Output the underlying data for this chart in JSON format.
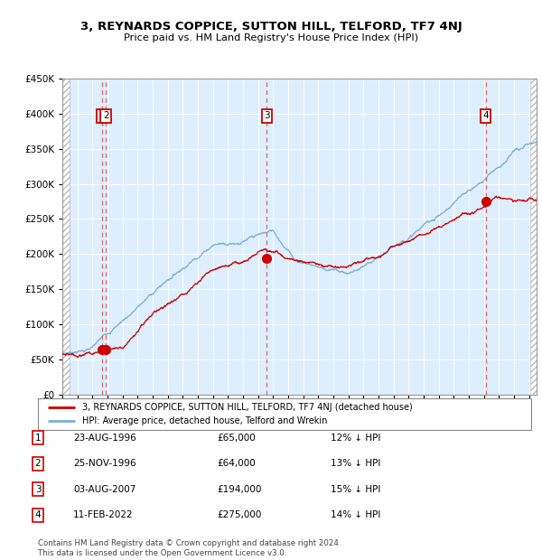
{
  "title": "3, REYNARDS COPPICE, SUTTON HILL, TELFORD, TF7 4NJ",
  "subtitle": "Price paid vs. HM Land Registry's House Price Index (HPI)",
  "ylim": [
    0,
    450000
  ],
  "yticks": [
    0,
    50000,
    100000,
    150000,
    200000,
    250000,
    300000,
    350000,
    400000,
    450000
  ],
  "sale_dates_num": [
    1996.645,
    1996.9,
    2007.586,
    2022.114
  ],
  "sale_prices": [
    65000,
    64000,
    194000,
    275000
  ],
  "sale_labels": [
    "1",
    "2",
    "3",
    "4"
  ],
  "sale_color": "#cc0000",
  "hpi_color": "#7ab0d4",
  "background_color": "#ddeeff",
  "legend_entries": [
    "3, REYNARDS COPPICE, SUTTON HILL, TELFORD, TF7 4NJ (detached house)",
    "HPI: Average price, detached house, Telford and Wrekin"
  ],
  "table_rows": [
    [
      "1",
      "23-AUG-1996",
      "£65,000",
      "12% ↓ HPI"
    ],
    [
      "2",
      "25-NOV-1996",
      "£64,000",
      "13% ↓ HPI"
    ],
    [
      "3",
      "03-AUG-2007",
      "£194,000",
      "15% ↓ HPI"
    ],
    [
      "4",
      "11-FEB-2022",
      "£275,000",
      "14% ↓ HPI"
    ]
  ],
  "footer": "Contains HM Land Registry data © Crown copyright and database right 2024.\nThis data is licensed under the Open Government Licence v3.0.",
  "xmin": 1994.0,
  "xmax": 2025.5
}
